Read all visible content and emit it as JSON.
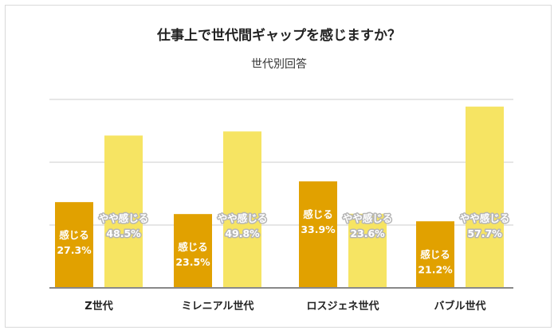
{
  "chart_data": {
    "type": "bar",
    "title": "仕事上で世代間ギャップを感じますか？",
    "subtitle": "世代別回答",
    "categories": [
      "Z世代",
      "ミレニアル世代",
      "ロスジェネ世代",
      "バブル世代"
    ],
    "series": [
      {
        "name": "感じる",
        "color": "#E1A100",
        "values": [
          27.3,
          23.5,
          33.9,
          21.2
        ],
        "value_labels": [
          "27.3%",
          "23.5%",
          "33.9%",
          "21.2%"
        ]
      },
      {
        "name": "やや感じる",
        "color": "#F6E463",
        "values": [
          48.5,
          49.8,
          23.6,
          57.7
        ],
        "value_labels": [
          "48.5%",
          "49.8%",
          "23.6%",
          "57.7%"
        ]
      }
    ],
    "ylim": [
      0,
      70
    ],
    "grid": true,
    "gridline_color": "#dddddd",
    "axis_color": "#888888"
  }
}
